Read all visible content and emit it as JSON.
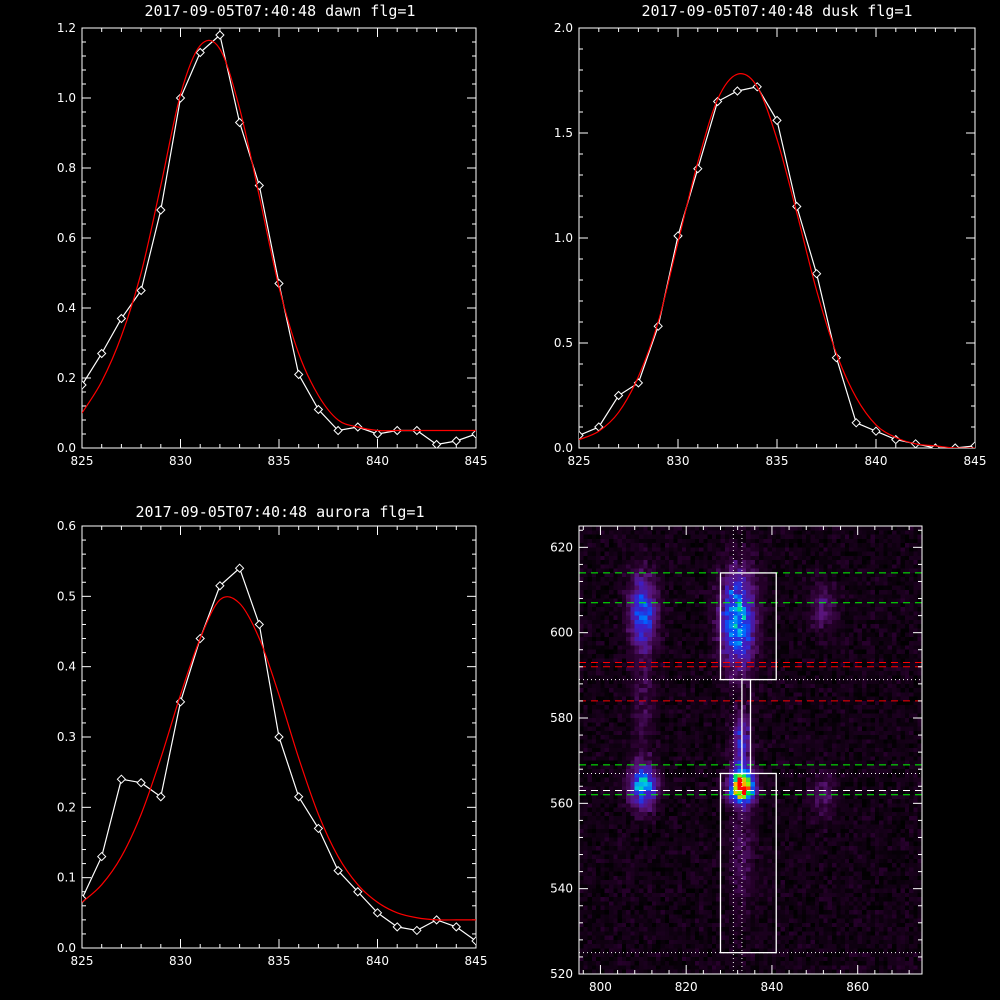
{
  "chart_data": [
    {
      "type": "line",
      "title": "2017-09-05T07:40:48 dawn flg=1",
      "xlim": [
        825,
        845
      ],
      "ylim": [
        0,
        1.2
      ],
      "xticks": [
        825,
        830,
        835,
        840,
        845
      ],
      "yticks": [
        0.0,
        0.2,
        0.4,
        0.6,
        0.8,
        1.0,
        1.2
      ],
      "ytick_labels": [
        "0.0",
        "0.2",
        "0.4",
        "0.6",
        "0.8",
        "1.0",
        "1.2"
      ],
      "series": [
        {
          "color": "#ffffff",
          "markers": "diamond",
          "x": [
            825,
            826,
            827,
            828,
            829,
            830,
            831,
            832,
            833,
            834,
            835,
            836,
            837,
            838,
            839,
            840,
            841,
            842,
            843,
            844,
            845
          ],
          "y": [
            0.18,
            0.27,
            0.37,
            0.45,
            0.68,
            1.0,
            1.13,
            1.18,
            0.93,
            0.75,
            0.47,
            0.21,
            0.11,
            0.05,
            0.06,
            0.04,
            0.05,
            0.05,
            0.01,
            0.02,
            0.04
          ]
        },
        {
          "color": "#ff0000",
          "markers": "none",
          "fit": "gaussian",
          "x": [
            825,
            826,
            827,
            828,
            829,
            830,
            831,
            832,
            833,
            834,
            835,
            836,
            837,
            838,
            839,
            840,
            841,
            842,
            843,
            844,
            845
          ],
          "y": [
            0.1,
            0.19,
            0.32,
            0.5,
            0.75,
            1.01,
            1.15,
            1.14,
            0.97,
            0.72,
            0.46,
            0.27,
            0.15,
            0.08,
            0.06,
            0.05,
            0.05,
            0.05,
            0.05,
            0.05,
            0.05
          ]
        }
      ]
    },
    {
      "type": "line",
      "title": "2017-09-05T07:40:48 dusk flg=1",
      "xlim": [
        825,
        845
      ],
      "ylim": [
        0,
        2.0
      ],
      "xticks": [
        825,
        830,
        835,
        840,
        845
      ],
      "yticks": [
        0.0,
        0.5,
        1.0,
        1.5,
        2.0
      ],
      "ytick_labels": [
        "0.0",
        "0.5",
        "1.0",
        "1.5",
        "2.0"
      ],
      "series": [
        {
          "color": "#ffffff",
          "markers": "diamond",
          "x": [
            825,
            826,
            827,
            828,
            829,
            830,
            831,
            832,
            833,
            834,
            835,
            836,
            837,
            838,
            839,
            840,
            841,
            842,
            843,
            844,
            845
          ],
          "y": [
            0.06,
            0.1,
            0.25,
            0.31,
            0.58,
            1.01,
            1.33,
            1.65,
            1.7,
            1.72,
            1.56,
            1.15,
            0.83,
            0.43,
            0.12,
            0.08,
            0.04,
            0.02,
            0.0,
            0.0,
            0.01
          ]
        },
        {
          "color": "#ff0000",
          "markers": "none",
          "fit": "gaussian",
          "x": [
            825,
            826,
            827,
            828,
            829,
            830,
            831,
            832,
            833,
            834,
            835,
            836,
            837,
            838,
            839,
            840,
            841,
            842,
            843,
            844,
            845
          ],
          "y": [
            0.04,
            0.08,
            0.17,
            0.34,
            0.6,
            0.98,
            1.36,
            1.66,
            1.78,
            1.72,
            1.47,
            1.12,
            0.75,
            0.45,
            0.24,
            0.11,
            0.05,
            0.02,
            0.01,
            0.0,
            0.0
          ]
        }
      ]
    },
    {
      "type": "line",
      "title": "2017-09-05T07:40:48 aurora flg=1",
      "xlim": [
        825,
        845
      ],
      "ylim": [
        0,
        0.6
      ],
      "xticks": [
        825,
        830,
        835,
        840,
        845
      ],
      "yticks": [
        0.0,
        0.1,
        0.2,
        0.3,
        0.4,
        0.5,
        0.6
      ],
      "ytick_labels": [
        "0.0",
        "0.1",
        "0.2",
        "0.3",
        "0.4",
        "0.5",
        "0.6"
      ],
      "series": [
        {
          "color": "#ffffff",
          "markers": "diamond",
          "x": [
            825,
            826,
            827,
            828,
            829,
            830,
            831,
            832,
            833,
            834,
            835,
            836,
            837,
            838,
            839,
            840,
            841,
            842,
            843,
            844,
            845
          ],
          "y": [
            0.07,
            0.13,
            0.24,
            0.235,
            0.215,
            0.35,
            0.44,
            0.515,
            0.54,
            0.46,
            0.3,
            0.215,
            0.17,
            0.11,
            0.08,
            0.05,
            0.03,
            0.025,
            0.04,
            0.03,
            0.01
          ]
        },
        {
          "color": "#ff0000",
          "markers": "none",
          "fit": "gaussian",
          "x": [
            825,
            826,
            827,
            828,
            829,
            830,
            831,
            832,
            833,
            834,
            835,
            836,
            837,
            838,
            839,
            840,
            841,
            842,
            843,
            844,
            845
          ],
          "y": [
            0.065,
            0.09,
            0.13,
            0.19,
            0.27,
            0.36,
            0.44,
            0.495,
            0.49,
            0.44,
            0.36,
            0.27,
            0.19,
            0.13,
            0.09,
            0.065,
            0.05,
            0.043,
            0.04,
            0.04,
            0.04
          ]
        }
      ]
    },
    {
      "type": "heatmap",
      "title": "",
      "colormap": "rainbow-on-black",
      "xlim": [
        795,
        875
      ],
      "ylim": [
        520,
        625
      ],
      "xticks": [
        800,
        820,
        840,
        860
      ],
      "yticks": [
        520,
        540,
        560,
        580,
        600,
        620
      ],
      "emission_blobs": [
        {
          "x": 810,
          "y": 605,
          "sx": 2.2,
          "sy": 6.0,
          "amp": 0.45
        },
        {
          "x": 810,
          "y": 564,
          "sx": 2.2,
          "sy": 3.5,
          "amp": 0.55
        },
        {
          "x": 810,
          "y": 584,
          "sx": 1.8,
          "sy": 9.0,
          "amp": 0.12
        },
        {
          "x": 832,
          "y": 603,
          "sx": 2.8,
          "sy": 8.0,
          "amp": 0.55
        },
        {
          "x": 833,
          "y": 564,
          "sx": 2.0,
          "sy": 2.6,
          "amp": 1.0
        },
        {
          "x": 833,
          "y": 574,
          "sx": 1.5,
          "sy": 5.0,
          "amp": 0.35
        },
        {
          "x": 833,
          "y": 548,
          "sx": 2.0,
          "sy": 9.0,
          "amp": 0.15
        },
        {
          "x": 852,
          "y": 606,
          "sx": 2.0,
          "sy": 4.0,
          "amp": 0.18
        },
        {
          "x": 852,
          "y": 562,
          "sx": 2.0,
          "sy": 4.0,
          "amp": 0.15
        }
      ],
      "boxes": [
        {
          "x0": 828,
          "x1": 841,
          "y0": 589,
          "y1": 614,
          "color": "#ffffff"
        },
        {
          "x0": 828,
          "x1": 841,
          "y0": 525,
          "y1": 567,
          "color": "#ffffff"
        },
        {
          "x0": 833,
          "x1": 835,
          "y0": 567,
          "y1": 589,
          "color": "#ffffff"
        }
      ],
      "hlines": [
        {
          "y": 614,
          "color": "#00ff00",
          "style": "dashed"
        },
        {
          "y": 607,
          "color": "#00ff00",
          "style": "dashed"
        },
        {
          "y": 593,
          "color": "#ff0000",
          "style": "dashed"
        },
        {
          "y": 592,
          "color": "#ff0000",
          "style": "dashed"
        },
        {
          "y": 589,
          "color": "#ffffff",
          "style": "dotted"
        },
        {
          "y": 584,
          "color": "#ff0000",
          "style": "dashed"
        },
        {
          "y": 569,
          "color": "#00ff00",
          "style": "dashed"
        },
        {
          "y": 567,
          "color": "#ffffff",
          "style": "dotted"
        },
        {
          "y": 563,
          "color": "#ffffff",
          "style": "dashed"
        },
        {
          "y": 562,
          "color": "#00ff00",
          "style": "dashed"
        },
        {
          "y": 525,
          "color": "#ffffff",
          "style": "dotted"
        }
      ],
      "vlines": [
        {
          "x": 831,
          "color": "#ffffff",
          "style": "dotted"
        },
        {
          "x": 833,
          "color": "#ffffff",
          "style": "dotted"
        }
      ]
    }
  ]
}
